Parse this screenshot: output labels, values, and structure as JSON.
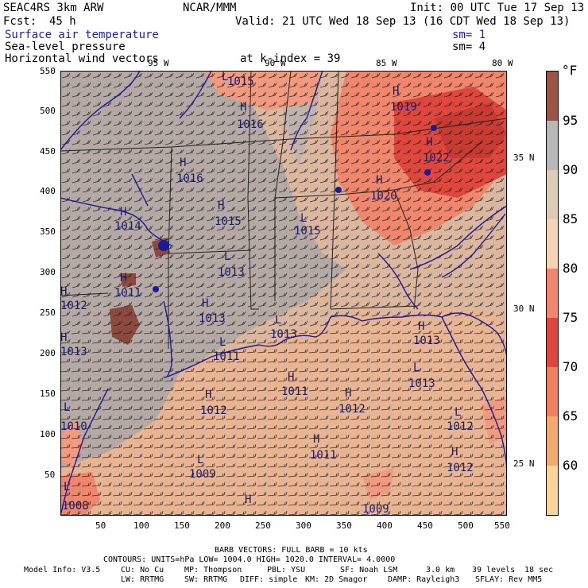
{
  "header": {
    "project": "SEAC4RS 3km ARW",
    "org": "NCAR/MMM",
    "init": "Init: 00 UTC Tue 17 Sep 13",
    "fcst_label": "Fcst:",
    "fcst_value": "45 h",
    "valid": "Valid: 21 UTC Wed 18 Sep 13 (16 CDT Wed 18 Sep 13)",
    "field1": "Surface air temperature",
    "field1_sm": "sm= 1",
    "field2": "Sea-level pressure",
    "field2_sm": "sm= 4",
    "field3": "Horizontal wind vectors",
    "k_index": "at k-index =  39"
  },
  "map": {
    "lon_labels": [
      "95 W",
      "90 W",
      "85 W",
      "80 W"
    ],
    "lat_labels": [
      "35 N",
      "30 N",
      "25 N"
    ],
    "x_ticks": [
      "50",
      "100",
      "150",
      "200",
      "250",
      "300",
      "350",
      "400",
      "450",
      "500",
      "550"
    ],
    "y_ticks": [
      "550",
      "500",
      "450",
      "400",
      "350",
      "300",
      "250",
      "200",
      "150",
      "100",
      "50"
    ],
    "pressure_centers": [
      {
        "type": "L",
        "value": "1015"
      },
      {
        "type": "H",
        "value": "1016"
      },
      {
        "type": "H",
        "value": "1016"
      },
      {
        "type": "H",
        "value": "1019"
      },
      {
        "type": "H",
        "value": "1022"
      },
      {
        "type": "H",
        "value": "1020"
      },
      {
        "type": "H",
        "value": "1015"
      },
      {
        "type": "L",
        "value": "1015"
      },
      {
        "type": "H",
        "value": "1014"
      },
      {
        "type": "L",
        "value": "1013"
      },
      {
        "type": "H",
        "value": "1011"
      },
      {
        "type": "H",
        "value": "1012"
      },
      {
        "type": "H",
        "value": "1013"
      },
      {
        "type": "H",
        "value": "1013"
      },
      {
        "type": "L",
        "value": "1011"
      },
      {
        "type": "L",
        "value": "1013"
      },
      {
        "type": "H",
        "value": "1011"
      },
      {
        "type": "H",
        "value": "1012"
      },
      {
        "type": "H",
        "value": "1013"
      },
      {
        "type": "L",
        "value": "1013"
      },
      {
        "type": "H",
        "value": "1012"
      },
      {
        "type": "H",
        "value": "1011"
      },
      {
        "type": "L",
        "value": "1010"
      },
      {
        "type": "L",
        "value": "1009"
      },
      {
        "type": "L",
        "value": "1012"
      },
      {
        "type": "H",
        "value": "1012"
      },
      {
        "type": "L",
        "value": "1008"
      },
      {
        "type": "H",
        "value": "1009"
      }
    ]
  },
  "colorbar": {
    "unit": "°F",
    "labels": [
      "95",
      "90",
      "85",
      "80",
      "75",
      "70",
      "65",
      "60"
    ],
    "colors": [
      "#9c5545",
      "#b8b8b8",
      "#dccbb7",
      "#f6d3b2",
      "#f0876c",
      "#e0473c",
      "#f08060",
      "#f4aa6c",
      "#fbd49a"
    ]
  },
  "footer": {
    "barb": "BARB VECTORS:  FULL BARB = 10 kts",
    "contours": "CONTOURS:  UNITS=hPa  LOW=  1004.0       HIGH=  1020.0       INTERVAL=   4.0000",
    "model_info": "Model Info: V3.5",
    "cu": "CU: No Cu",
    "mp": "MP: Thompson",
    "pbl": "PBL: YSU",
    "sf": "SF: Noah LSM",
    "res": "3.0 km",
    "levels": "39 levels",
    "dt": "18 sec",
    "lw": "LW: RRTMG",
    "sw": "SW: RRTMG",
    "diff": "DIFF: simple",
    "km": "KM: 2D Smagor",
    "damp": "DAMP: Rayleigh3",
    "sflay": "SFLAY: Rev MM5"
  }
}
